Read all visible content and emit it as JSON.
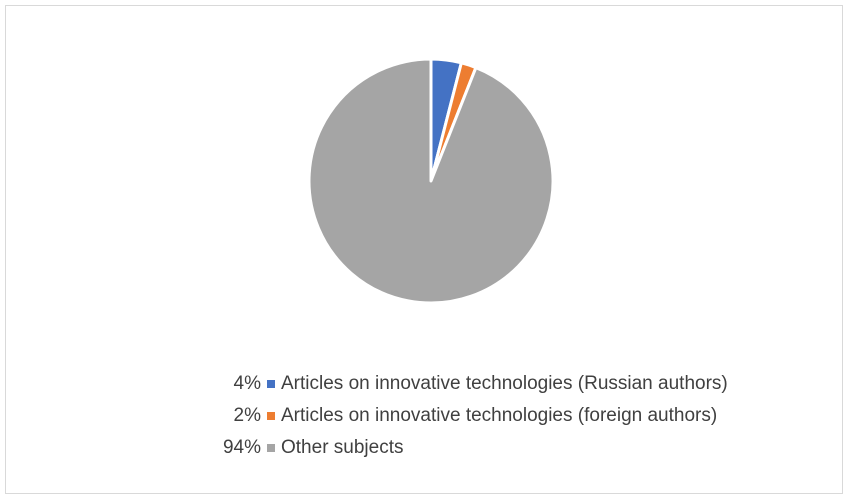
{
  "chart_data": {
    "type": "pie",
    "title": "",
    "legend_position": "bottom",
    "slices": [
      {
        "label": "Articles on innovative technologies (Russian authors)",
        "value": 4,
        "value_label": "4%",
        "color": "#4472c4"
      },
      {
        "label": "Articles on innovative technologies (foreign authors)",
        "value": 2,
        "value_label": "2%",
        "color": "#ed7d31"
      },
      {
        "label": "Other subjects",
        "value": 94,
        "value_label": "94%",
        "color": "#a5a5a5"
      }
    ]
  }
}
